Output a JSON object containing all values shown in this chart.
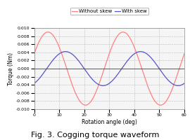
{
  "title": "Fig. 3. Cogging torque waveform",
  "xlabel": "Rotation angle (deg)",
  "ylabel": "Torque (Nm)",
  "xlim": [
    0,
    60
  ],
  "ylim": [
    -0.01,
    0.01
  ],
  "yticks": [
    -0.01,
    -0.008,
    -0.006,
    -0.004,
    -0.002,
    0.0,
    0.002,
    0.004,
    0.006,
    0.008,
    0.01
  ],
  "xticks": [
    0,
    10,
    20,
    30,
    40,
    50,
    60
  ],
  "without_skew_color": "#FF8080",
  "with_skew_color": "#5555CC",
  "without_skew_amplitude": 0.009,
  "with_skew_amplitude": 0.0042,
  "period": 30,
  "without_skew_phase": -2.0,
  "with_skew_phase": 5.0,
  "bg_color": "#FFFFFF",
  "plot_bg_color": "#F5F5F5",
  "grid_color": "#BBBBBB",
  "legend_labels": [
    "Without skew",
    "With skew"
  ],
  "title_fontsize": 8,
  "axis_fontsize": 5.5,
  "tick_fontsize": 4.5,
  "legend_fontsize": 5.0,
  "linewidth": 0.9
}
